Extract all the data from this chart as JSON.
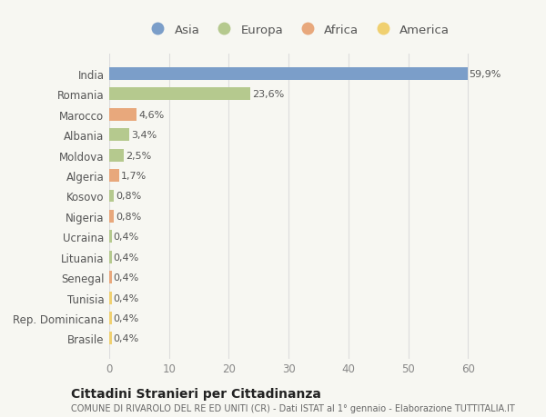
{
  "countries": [
    "India",
    "Romania",
    "Marocco",
    "Albania",
    "Moldova",
    "Algeria",
    "Kosovo",
    "Nigeria",
    "Ucraina",
    "Lituania",
    "Senegal",
    "Tunisia",
    "Rep. Dominicana",
    "Brasile"
  ],
  "values": [
    59.9,
    23.6,
    4.6,
    3.4,
    2.5,
    1.7,
    0.8,
    0.8,
    0.4,
    0.4,
    0.4,
    0.4,
    0.4,
    0.4
  ],
  "labels": [
    "59,9%",
    "23,6%",
    "4,6%",
    "3,4%",
    "2,5%",
    "1,7%",
    "0,8%",
    "0,8%",
    "0,4%",
    "0,4%",
    "0,4%",
    "0,4%",
    "0,4%",
    "0,4%"
  ],
  "continent_colors": {
    "Asia": "#7b9ec9",
    "Europa": "#b5c98e",
    "Africa": "#e8a87c",
    "America": "#f0d070"
  },
  "bar_colors": [
    "#7b9ec9",
    "#b5c98e",
    "#e8a87c",
    "#b5c98e",
    "#b5c98e",
    "#e8a87c",
    "#b5c98e",
    "#e8a87c",
    "#b5c98e",
    "#b5c98e",
    "#e8a87c",
    "#f0d070",
    "#f0d070",
    "#f0d070"
  ],
  "title": "Cittadini Stranieri per Cittadinanza",
  "subtitle": "COMUNE DI RIVAROLO DEL RE ED UNITI (CR) - Dati ISTAT al 1° gennaio - Elaborazione TUTTITALIA.IT",
  "background_color": "#f7f7f2",
  "xlim": [
    0,
    63
  ],
  "xticks": [
    0,
    10,
    20,
    30,
    40,
    50,
    60
  ],
  "legend_items": [
    "Asia",
    "Europa",
    "Africa",
    "America"
  ]
}
